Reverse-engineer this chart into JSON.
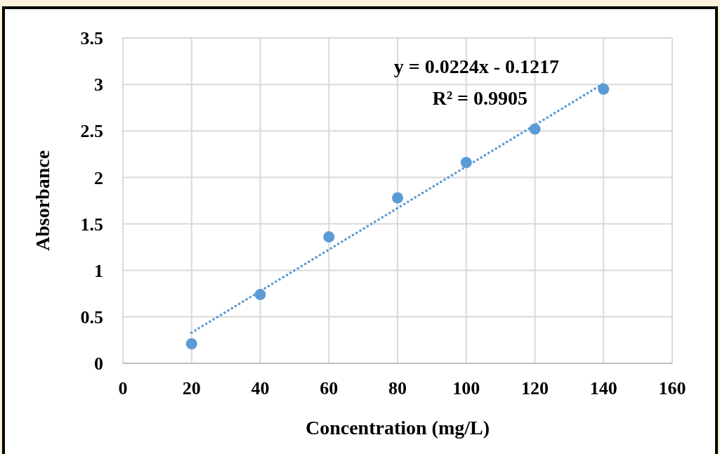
{
  "chart_data": {
    "type": "scatter",
    "xlabel": "Concentration (mg/L)",
    "ylabel": "Absorbance",
    "x": [
      20,
      40,
      60,
      80,
      100,
      120,
      140
    ],
    "series": [
      {
        "color": "#5b9bd5",
        "marker": "circle",
        "values": [
          0.21,
          0.74,
          1.36,
          1.78,
          2.16,
          2.52,
          2.95
        ]
      },
      {
        "type": "line",
        "color": "#5b9bd5",
        "marker": "none",
        "line_style": "dotted",
        "x": [
          20,
          140
        ],
        "values": [
          0.33,
          3.01
        ]
      }
    ],
    "annotations": [
      "y = 0.0224x - 0.1217",
      "R² = 0.9905"
    ],
    "xlim": [
      0,
      160
    ],
    "xticks": [
      0,
      20,
      40,
      60,
      80,
      100,
      120,
      140,
      160
    ],
    "ylim": [
      0,
      3.5
    ],
    "yticks": [
      0,
      0.5,
      1,
      1.5,
      2,
      2.5,
      3,
      3.5
    ],
    "grid": true
  }
}
